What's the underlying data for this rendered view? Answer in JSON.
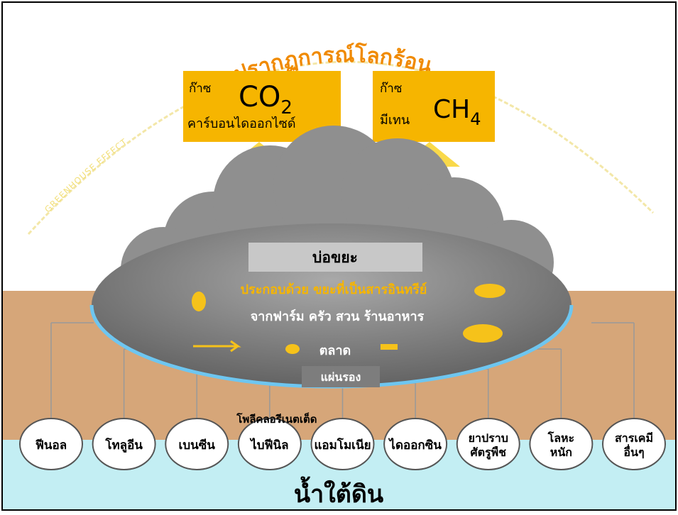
{
  "title": "ปรากฏการณ์โลกร้อน",
  "arc_label": "GREENHOUSE EFFECT",
  "gases": [
    {
      "prefix": "ก๊าซ",
      "formula": "CO",
      "subscript": "2",
      "name": "คาร์บอนไดออกไซด์"
    },
    {
      "prefix": "ก๊าซ",
      "formula": "CH",
      "subscript": "4",
      "name": "มีเทน"
    }
  ],
  "landfill": {
    "title": "บ่อขยะ",
    "composition": "ประกอบด้วย ขยะที่เป็นสารอินทรีย์",
    "sources": "จากฟาร์ม ครัว สวน ร้านอาหาร",
    "sources_more": "ตลาด",
    "liner": "แผ่นรอง"
  },
  "pollutants": [
    {
      "lines": [
        "ฟีนอล"
      ]
    },
    {
      "lines": [
        "โทลูอีน"
      ]
    },
    {
      "lines": [
        "เบนซีน"
      ]
    },
    {
      "caption": "โพลีคลอรีเนตเต็ด",
      "lines": [
        "ไบฟีนิล"
      ]
    },
    {
      "lines": [
        "แอมโมเนีย"
      ]
    },
    {
      "lines": [
        "ไดออกซิน"
      ]
    },
    {
      "lines": [
        "ยาปราบ",
        "ศัตรูพืช"
      ]
    },
    {
      "lines": [
        "โลหะ",
        "หนัก"
      ]
    },
    {
      "lines": [
        "สารเคมี",
        "อื่นๆ"
      ]
    }
  ],
  "groundwater": "น้ำใต้ดิน"
}
